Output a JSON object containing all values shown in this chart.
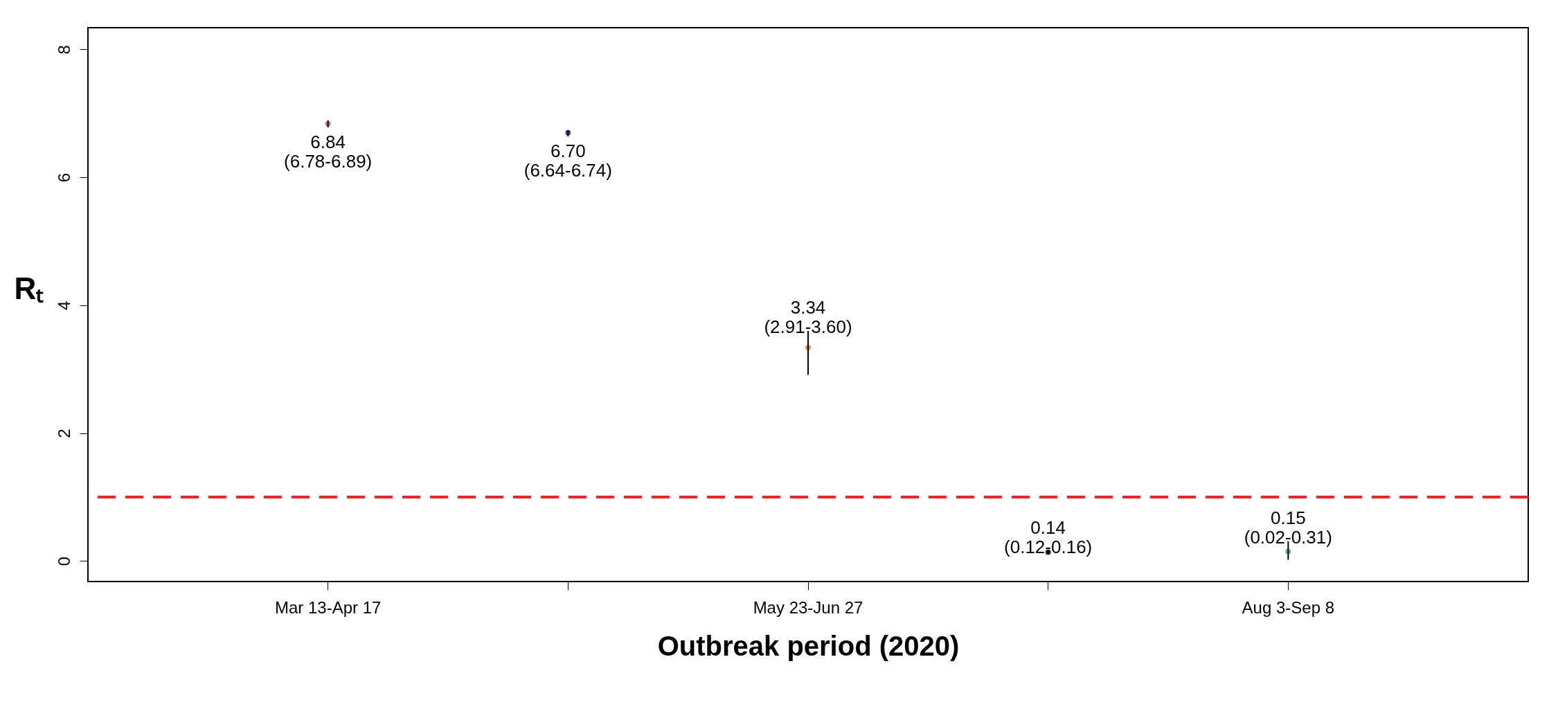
{
  "chart_data": {
    "type": "scatter",
    "categories": [
      "Mar 13-Apr 17",
      null,
      "May 23-Jun 27",
      null,
      "Aug 3-Sep 8"
    ],
    "values": [
      6.84,
      6.7,
      3.34,
      0.14,
      0.15
    ],
    "errors": [
      [
        6.78,
        6.89
      ],
      [
        6.64,
        6.74
      ],
      [
        2.91,
        3.6
      ],
      [
        0.12,
        0.16
      ],
      [
        0.02,
        0.31
      ]
    ],
    "value_labels": [
      "6.84\n(6.78-6.89)",
      "6.70\n(6.64-6.74)",
      "3.34\n(2.91-3.60)",
      "0.14\n(0.12-0.16)",
      "0.15\n(0.02-0.31)"
    ],
    "colors": [
      "#e06c6c",
      "#2c3f8f",
      "#e5893a",
      "#222222",
      "#3cc47c"
    ],
    "xlabel": "Outbreak period (2020)",
    "ylabel": "Rₜ",
    "ylim": [
      -0.32,
      8.34
    ],
    "yticks": [
      0,
      2,
      4,
      6,
      8
    ],
    "ref_lines": [
      {
        "axis": "y",
        "value": 1,
        "color": "#ff2020",
        "line_style": "dashed"
      }
    ],
    "marker": "circle",
    "grid": false
  }
}
